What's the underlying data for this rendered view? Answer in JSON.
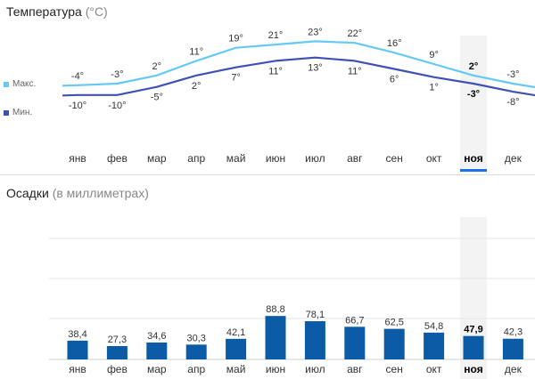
{
  "temperature": {
    "title": "Температура",
    "unit": "(°C)",
    "legend": {
      "max": "Макс.",
      "min": "Мин."
    },
    "max_color": "#66c8f5",
    "min_color": "#3f51b5"
  },
  "precipitation": {
    "title": "Осадки",
    "unit": "(в миллиметрах)",
    "bar_color": "#0b5ba6"
  },
  "selected_month_index": 10,
  "selected_month_color": "#1a73e8",
  "chart_data": [
    {
      "type": "line",
      "title": "Температура (°C)",
      "categories": [
        "янв",
        "фев",
        "мар",
        "апр",
        "май",
        "июн",
        "июл",
        "авг",
        "сен",
        "окт",
        "ноя",
        "дек"
      ],
      "series": [
        {
          "name": "Макс.",
          "values": [
            -4,
            -3,
            2,
            11,
            19,
            21,
            23,
            22,
            16,
            9,
            2,
            -3
          ],
          "labels": [
            "-4°",
            "-3°",
            "2°",
            "11°",
            "19°",
            "21°",
            "23°",
            "22°",
            "16°",
            "9°",
            "2°",
            "-3°"
          ]
        },
        {
          "name": "Мин.",
          "values": [
            -10,
            -10,
            -5,
            2,
            7,
            11,
            13,
            11,
            6,
            1,
            -3,
            -8
          ],
          "labels": [
            "-10°",
            "-10°",
            "-5°",
            "2°",
            "7°",
            "11°",
            "13°",
            "11°",
            "6°",
            "1°",
            "-3°",
            "-8°"
          ]
        }
      ],
      "legend": "left"
    },
    {
      "type": "bar",
      "title": "Осадки (в миллиметрах)",
      "categories": [
        "янв",
        "фев",
        "мар",
        "апр",
        "май",
        "июн",
        "июл",
        "авг",
        "сен",
        "окт",
        "ноя",
        "дек"
      ],
      "values": [
        38.4,
        27.3,
        34.6,
        30.3,
        42.1,
        88.8,
        78.1,
        66.7,
        62.5,
        54.8,
        47.9,
        42.3
      ],
      "labels": [
        "38,4",
        "27,3",
        "34,6",
        "30,3",
        "42,1",
        "88,8",
        "78,1",
        "66,7",
        "62,5",
        "54,8",
        "47,9",
        "42,3"
      ],
      "grid": true
    }
  ]
}
